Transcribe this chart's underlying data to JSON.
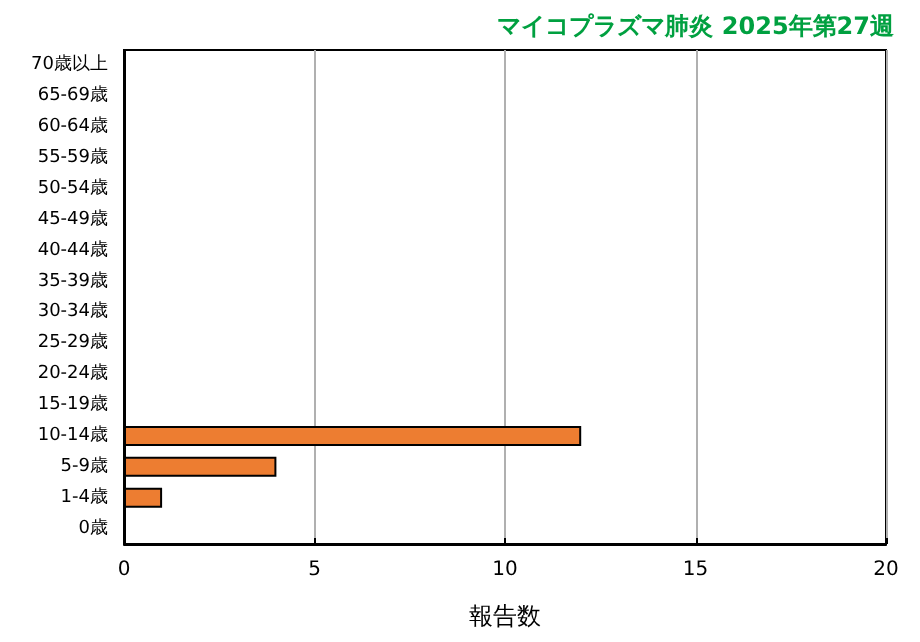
{
  "chart_data": {
    "type": "bar",
    "orientation": "horizontal",
    "title": "マイコプラズマ肺炎 2025年第27週",
    "xlabel": "報告数",
    "categories": [
      "70歳以上",
      "65-69歳",
      "60-64歳",
      "55-59歳",
      "50-54歳",
      "45-49歳",
      "40-44歳",
      "35-39歳",
      "30-34歳",
      "25-29歳",
      "20-24歳",
      "15-19歳",
      "10-14歳",
      "5-9歳",
      "1-4歳",
      "0歳"
    ],
    "values": [
      0,
      0,
      0,
      0,
      0,
      0,
      0,
      0,
      0,
      0,
      0,
      0,
      12,
      4,
      1,
      0
    ],
    "color": "#ed7d31",
    "xlim": [
      0,
      20
    ],
    "xticks": [
      0,
      5,
      10,
      15,
      20
    ],
    "grid": "x"
  }
}
